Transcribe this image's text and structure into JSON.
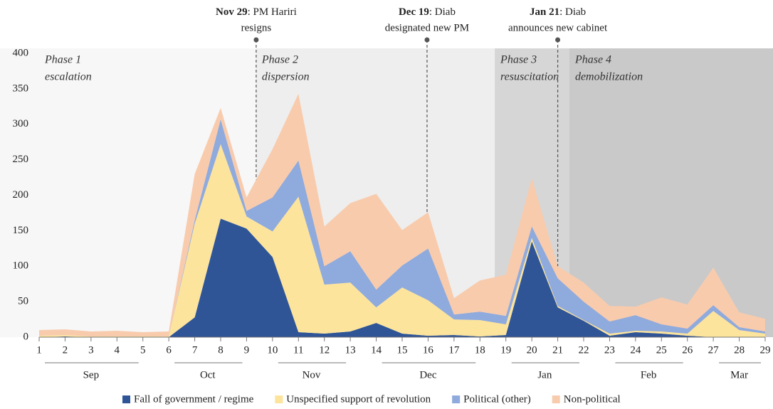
{
  "chart_data": {
    "type": "stacked_area",
    "x": [
      1,
      2,
      3,
      4,
      5,
      6,
      7,
      8,
      9,
      10,
      11,
      12,
      13,
      14,
      15,
      16,
      17,
      18,
      19,
      20,
      21,
      22,
      23,
      24,
      25,
      26,
      27,
      28,
      29
    ],
    "xlim": [
      1,
      29
    ],
    "xticks": [
      1,
      2,
      3,
      4,
      5,
      6,
      7,
      8,
      9,
      10,
      11,
      12,
      13,
      14,
      15,
      16,
      17,
      18,
      19,
      20,
      21,
      22,
      23,
      24,
      25,
      26,
      27,
      28,
      29
    ],
    "ylim": [
      0,
      400
    ],
    "yticks": [
      0,
      50,
      100,
      150,
      200,
      250,
      300,
      350,
      400
    ],
    "series": [
      {
        "name": "Fall of government / regime",
        "color": "#2f5597",
        "values": [
          0,
          1,
          0,
          0,
          0,
          0,
          28,
          167,
          153,
          113,
          7,
          5,
          8,
          20,
          5,
          2,
          3,
          1,
          3,
          135,
          42,
          23,
          2,
          7,
          5,
          2,
          0,
          0,
          0
        ]
      },
      {
        "name": "Unspecified support of revolution",
        "color": "#fde49c",
        "values": [
          2,
          2,
          1,
          1,
          1,
          1,
          132,
          105,
          17,
          36,
          191,
          69,
          69,
          22,
          65,
          50,
          22,
          23,
          15,
          5,
          2,
          1,
          3,
          2,
          3,
          3,
          37,
          10,
          5
        ]
      },
      {
        "name": "Political (other)",
        "color": "#8faadc",
        "values": [
          0,
          0,
          0,
          0,
          0,
          0,
          5,
          35,
          8,
          48,
          51,
          26,
          44,
          25,
          31,
          73,
          7,
          12,
          12,
          16,
          39,
          26,
          17,
          22,
          10,
          7,
          8,
          4,
          3
        ]
      },
      {
        "name": "Non-political",
        "color": "#f8cbad",
        "values": [
          8,
          8,
          7,
          8,
          6,
          7,
          65,
          16,
          19,
          68,
          94,
          56,
          68,
          135,
          50,
          51,
          23,
          44,
          58,
          68,
          17,
          27,
          22,
          12,
          38,
          34,
          53,
          21,
          18
        ]
      }
    ],
    "months": [
      {
        "label": "Sep",
        "from": 1,
        "to": 5
      },
      {
        "label": "Oct",
        "from": 6,
        "to": 9
      },
      {
        "label": "Nov",
        "from": 10,
        "to": 13
      },
      {
        "label": "Dec",
        "from": 14,
        "to": 18
      },
      {
        "label": "Jan",
        "from": 19,
        "to": 22
      },
      {
        "label": "Feb",
        "from": 23,
        "to": 26
      },
      {
        "label": "Mar",
        "from": 27,
        "to": 29
      }
    ],
    "phases": [
      {
        "name": "Phase 1",
        "label": "escalation",
        "from": 1,
        "to": 9.37,
        "color": "#f7f7f7"
      },
      {
        "name": "Phase 2",
        "label": "dispersion",
        "from": 9.37,
        "to": 18.57,
        "color": "#eeeeee"
      },
      {
        "name": "Phase 3",
        "label": "resuscitation",
        "from": 18.57,
        "to": 21.45,
        "color": "#d6d6d6"
      },
      {
        "name": "Phase 4",
        "label": "demobilization",
        "from": 21.45,
        "to": 29.4,
        "color": "#c9c9c9"
      }
    ],
    "annotations": [
      {
        "date": "Nov 29",
        "lines": [
          ": PM Hariri",
          "resigns"
        ],
        "x": 9.37
      },
      {
        "date": "Dec 19",
        "lines": [
          ": Diab",
          "designated new PM"
        ],
        "x": 15.96
      },
      {
        "date": "Jan 21",
        "lines": [
          ": Diab",
          "announces new cabinet"
        ],
        "x": 21.0
      }
    ]
  }
}
